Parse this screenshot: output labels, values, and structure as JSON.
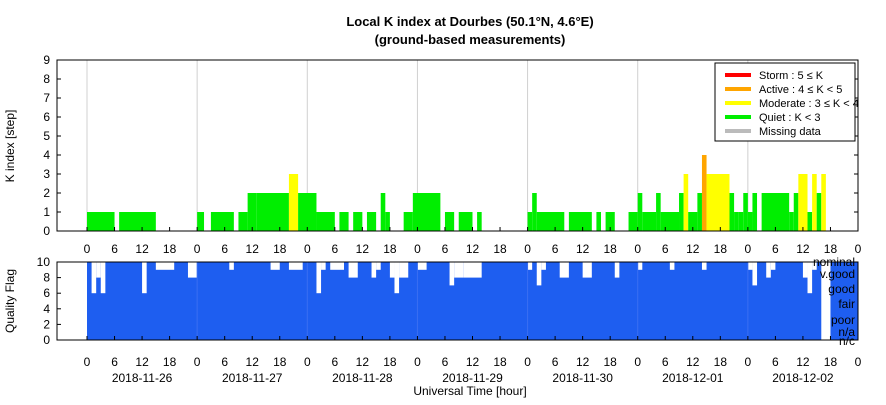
{
  "chart_data": [
    {
      "type": "bar",
      "title": "Local K index at Dourbes (50.1°N, 4.6°E)",
      "subtitle": "(ground-based measurements)",
      "ylabel": "K index [step]",
      "ylim": [
        0,
        9
      ],
      "yticks": [
        "0",
        "1",
        "2",
        "3",
        "4",
        "5",
        "6",
        "7",
        "8",
        "9"
      ],
      "x_hour_ticks": [
        "0",
        "6",
        "12",
        "18",
        "0",
        "6",
        "12",
        "18",
        "0",
        "6",
        "12",
        "18",
        "0",
        "6",
        "12",
        "18",
        "0",
        "6",
        "12",
        "18",
        "0",
        "6",
        "12",
        "18",
        "0",
        "6",
        "12",
        "18",
        "0"
      ],
      "grid": "vertical lines at day boundaries",
      "legend_position": "top-right",
      "legend": [
        {
          "label": "Storm : 5 ≤ K",
          "color": "#ff0000"
        },
        {
          "label": "Active : 4 ≤ K < 5",
          "color": "#ffa500"
        },
        {
          "label": "Moderate : 3 ≤ K < 4",
          "color": "#ffff00"
        },
        {
          "label": "Quiet : K < 3",
          "color": "#00ee00"
        },
        {
          "label": "Missing data",
          "color": "#bbbbbb"
        }
      ],
      "x_unit": "hour since 2018-11-26 00:00 UT",
      "bars": [
        {
          "start": 0,
          "end": 6,
          "k": 1
        },
        {
          "start": 7,
          "end": 15,
          "k": 1
        },
        {
          "start": 24,
          "end": 25.5,
          "k": 1
        },
        {
          "start": 27,
          "end": 32,
          "k": 1
        },
        {
          "start": 33,
          "end": 35,
          "k": 1
        },
        {
          "start": 35,
          "end": 37,
          "k": 2
        },
        {
          "start": 37,
          "end": 44,
          "k": 2
        },
        {
          "start": 44,
          "end": 46,
          "k": 3
        },
        {
          "start": 46,
          "end": 50,
          "k": 2
        },
        {
          "start": 50,
          "end": 54,
          "k": 1
        },
        {
          "start": 55,
          "end": 57,
          "k": 1
        },
        {
          "start": 58,
          "end": 60,
          "k": 1
        },
        {
          "start": 61,
          "end": 63,
          "k": 1
        },
        {
          "start": 64,
          "end": 65,
          "k": 2
        },
        {
          "start": 65,
          "end": 66,
          "k": 1
        },
        {
          "start": 69,
          "end": 71,
          "k": 1
        },
        {
          "start": 71,
          "end": 77,
          "k": 2
        },
        {
          "start": 78,
          "end": 80,
          "k": 1
        },
        {
          "start": 81,
          "end": 84,
          "k": 1
        },
        {
          "start": 85,
          "end": 86,
          "k": 1
        },
        {
          "start": 96,
          "end": 97,
          "k": 1
        },
        {
          "start": 97,
          "end": 98,
          "k": 2
        },
        {
          "start": 98,
          "end": 104,
          "k": 1
        },
        {
          "start": 105,
          "end": 110,
          "k": 1
        },
        {
          "start": 111,
          "end": 112,
          "k": 1
        },
        {
          "start": 113,
          "end": 115,
          "k": 1
        },
        {
          "start": 118,
          "end": 120,
          "k": 1
        },
        {
          "start": 120,
          "end": 121,
          "k": 2
        },
        {
          "start": 121,
          "end": 124,
          "k": 1
        },
        {
          "start": 124,
          "end": 125,
          "k": 2
        },
        {
          "start": 125,
          "end": 129,
          "k": 1
        },
        {
          "start": 129,
          "end": 130,
          "k": 2
        },
        {
          "start": 130,
          "end": 131,
          "k": 3
        },
        {
          "start": 131,
          "end": 133,
          "k": 1
        },
        {
          "start": 133,
          "end": 134,
          "k": 2
        },
        {
          "start": 134,
          "end": 135,
          "k": 4
        },
        {
          "start": 135,
          "end": 140,
          "k": 3
        },
        {
          "start": 140,
          "end": 141,
          "k": 2
        },
        {
          "start": 141,
          "end": 142,
          "k": 1
        },
        {
          "start": 142,
          "end": 143,
          "k": 1
        },
        {
          "start": 143,
          "end": 144,
          "k": 2
        },
        {
          "start": 144,
          "end": 145,
          "k": 1
        },
        {
          "start": 145,
          "end": 146,
          "k": 2
        },
        {
          "start": 147,
          "end": 153,
          "k": 2
        },
        {
          "start": 153,
          "end": 154,
          "k": 1
        },
        {
          "start": 154,
          "end": 155,
          "k": 2
        },
        {
          "start": 155,
          "end": 157,
          "k": 3
        },
        {
          "start": 157,
          "end": 158,
          "k": 1
        },
        {
          "start": 158,
          "end": 159,
          "k": 3
        },
        {
          "start": 159,
          "end": 160,
          "k": 2
        },
        {
          "start": 160,
          "end": 161,
          "k": 3
        }
      ]
    },
    {
      "type": "area",
      "ylabel": "Quality Flag",
      "ylim": [
        0,
        10
      ],
      "yticks": [
        "0",
        "2",
        "4",
        "6",
        "8",
        "10"
      ],
      "flag_levels": [
        "nominal",
        "v.good",
        "good",
        "fair",
        "poor",
        "n/a",
        "n/c"
      ],
      "x_hour_ticks": [
        "0",
        "6",
        "12",
        "18",
        "0",
        "6",
        "12",
        "18",
        "0",
        "6",
        "12",
        "18",
        "0",
        "6",
        "12",
        "18",
        "0",
        "6",
        "12",
        "18",
        "0",
        "6",
        "12",
        "18",
        "0",
        "6",
        "12",
        "18",
        "0"
      ],
      "dates": [
        "2018-11-26",
        "2018-11-27",
        "2018-11-28",
        "2018-11-29",
        "2018-11-30",
        "2018-12-01",
        "2018-12-02"
      ],
      "xlabel": "Universal Time [hour]",
      "fill_color": "#1e5ef0",
      "background_level": 10,
      "dips": [
        {
          "start": 1,
          "end": 2,
          "q": 6
        },
        {
          "start": 2,
          "end": 3,
          "q": 8
        },
        {
          "start": 3,
          "end": 4,
          "q": 6
        },
        {
          "start": 12,
          "end": 13,
          "q": 6
        },
        {
          "start": 15,
          "end": 19,
          "q": 9
        },
        {
          "start": 22,
          "end": 24,
          "q": 8
        },
        {
          "start": 31,
          "end": 32,
          "q": 9
        },
        {
          "start": 40,
          "end": 42,
          "q": 9
        },
        {
          "start": 44,
          "end": 47,
          "q": 9
        },
        {
          "start": 50,
          "end": 51,
          "q": 6
        },
        {
          "start": 51,
          "end": 52,
          "q": 9
        },
        {
          "start": 53,
          "end": 56,
          "q": 9
        },
        {
          "start": 57,
          "end": 59,
          "q": 8
        },
        {
          "start": 62,
          "end": 63,
          "q": 8
        },
        {
          "start": 63,
          "end": 64,
          "q": 9
        },
        {
          "start": 66,
          "end": 67,
          "q": 8
        },
        {
          "start": 67,
          "end": 68,
          "q": 6
        },
        {
          "start": 68,
          "end": 70,
          "q": 8
        },
        {
          "start": 72,
          "end": 74,
          "q": 9
        },
        {
          "start": 79,
          "end": 80,
          "q": 7
        },
        {
          "start": 80,
          "end": 82,
          "q": 8
        },
        {
          "start": 82,
          "end": 86,
          "q": 8
        },
        {
          "start": 96,
          "end": 97,
          "q": 9
        },
        {
          "start": 98,
          "end": 99,
          "q": 7
        },
        {
          "start": 99,
          "end": 100,
          "q": 9
        },
        {
          "start": 103,
          "end": 105,
          "q": 8
        },
        {
          "start": 108,
          "end": 110,
          "q": 8
        },
        {
          "start": 115,
          "end": 116,
          "q": 8
        },
        {
          "start": 120,
          "end": 121,
          "q": 9
        },
        {
          "start": 127,
          "end": 128,
          "q": 9
        },
        {
          "start": 134,
          "end": 135,
          "q": 9
        },
        {
          "start": 144,
          "end": 145,
          "q": 9
        },
        {
          "start": 145,
          "end": 146,
          "q": 7
        },
        {
          "start": 148,
          "end": 149,
          "q": 8
        },
        {
          "start": 149,
          "end": 150,
          "q": 9
        },
        {
          "start": 156,
          "end": 157,
          "q": 8
        },
        {
          "start": 157,
          "end": 158,
          "q": 6
        },
        {
          "start": 158,
          "end": 159,
          "q": 9
        },
        {
          "start": 160,
          "end": 162,
          "q": 0
        }
      ]
    }
  ]
}
